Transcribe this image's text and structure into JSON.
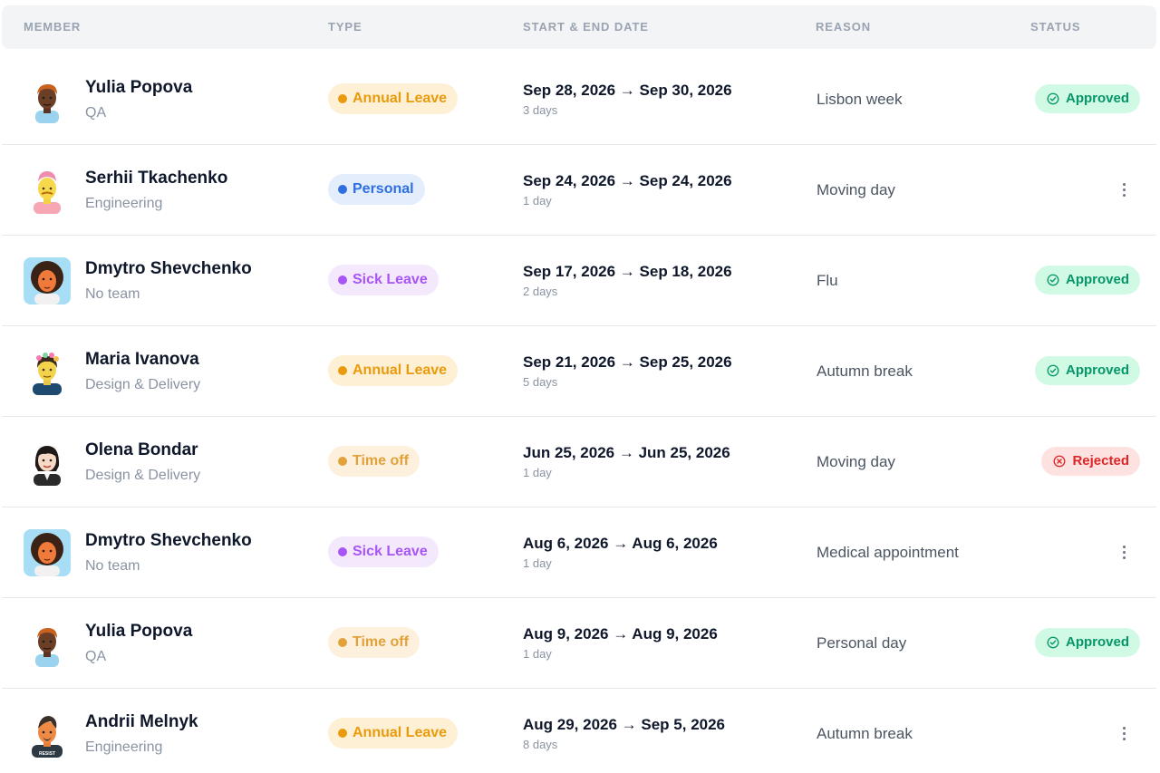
{
  "columns": {
    "member": "MEMBER",
    "type": "TYPE",
    "dates": "START & END DATE",
    "reason": "REASON",
    "status": "STATUS"
  },
  "colors": {
    "annual": {
      "bg": "#fdf0d5",
      "fg": "#ea9a0c"
    },
    "personal": {
      "bg": "#e3edfc",
      "fg": "#2f6fe0"
    },
    "sick": {
      "bg": "#f4e8fd",
      "fg": "#a855f7"
    },
    "timeoff": {
      "bg": "#fdf1dd",
      "fg": "#e3a13a"
    },
    "approved": "#059669",
    "rejected": "#dc2626"
  },
  "rows": [
    {
      "avatar": "avatar-dark-skin-icon",
      "name": "Yulia Popova",
      "team": "QA",
      "type": "Annual Leave",
      "type_key": "annual",
      "dates": "Sep 28, 2026 → Sep 30, 2026",
      "days": "3 days",
      "reason": "Lisbon week",
      "status": "Approved"
    },
    {
      "avatar": "avatar-pink-hair-icon",
      "name": "Serhii Tkachenko",
      "team": "Engineering",
      "type": "Personal",
      "type_key": "personal",
      "dates": "Sep 24, 2026 → Sep 24, 2026",
      "days": "1 day",
      "reason": "Moving day",
      "status": ""
    },
    {
      "avatar": "avatar-curly-hair-icon",
      "name": "Dmytro Shevchenko",
      "team": "No team",
      "type": "Sick Leave",
      "type_key": "sick",
      "dates": "Sep 17, 2026 → Sep 18, 2026",
      "days": "2 days",
      "reason": "Flu",
      "status": "Approved"
    },
    {
      "avatar": "avatar-flower-crown-icon",
      "name": "Maria Ivanova",
      "team": "Design & Delivery",
      "type": "Annual Leave",
      "type_key": "annual",
      "dates": "Sep 21, 2026 → Sep 25, 2026",
      "days": "5 days",
      "reason": "Autumn break",
      "status": "Approved"
    },
    {
      "avatar": "avatar-dark-hair-icon",
      "name": "Olena Bondar",
      "team": "Design & Delivery",
      "type": "Time off",
      "type_key": "timeoff",
      "dates": "Jun 25, 2026 → Jun 25, 2026",
      "days": "1 day",
      "reason": "Moving day",
      "status": "Rejected"
    },
    {
      "avatar": "avatar-curly-hair-icon",
      "name": "Dmytro Shevchenko",
      "team": "No team",
      "type": "Sick Leave",
      "type_key": "sick",
      "dates": "Aug 6, 2026 → Aug 6, 2026",
      "days": "1 day",
      "reason": "Medical appointment",
      "status": ""
    },
    {
      "avatar": "avatar-dark-skin-icon",
      "name": "Yulia Popova",
      "team": "QA",
      "type": "Time off",
      "type_key": "timeoff",
      "dates": "Aug 9, 2026 → Aug 9, 2026",
      "days": "1 day",
      "reason": "Personal day",
      "status": "Approved"
    },
    {
      "avatar": "avatar-resist-shirt-icon",
      "name": "Andrii Melnyk",
      "team": "Engineering",
      "type": "Annual Leave",
      "type_key": "annual",
      "dates": "Aug 29, 2026 → Sep 5, 2026",
      "days": "8 days",
      "reason": "Autumn break",
      "status": "",
      "shirt_text": "RESIST"
    }
  ]
}
